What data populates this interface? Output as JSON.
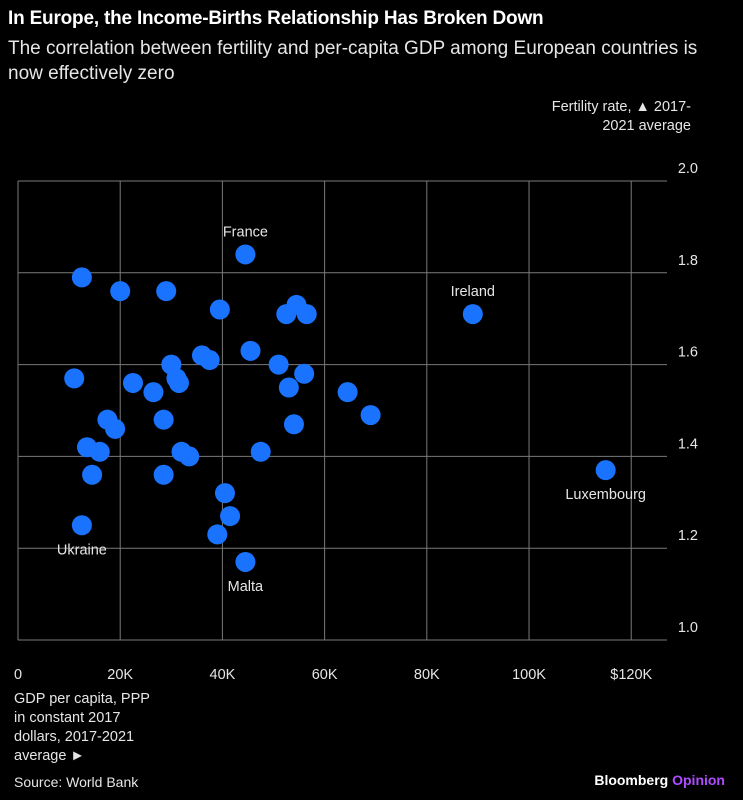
{
  "title": "In Europe, the Income-Births Relationship Has Broken Down",
  "subtitle": "The correlation between fertility and per-capita GDP among European countries is now effectively zero",
  "ylabel": "Fertility rate, ▲ 2017-2021 average",
  "xlabel": "GDP per capita, PPP in constant 2017 dollars, 2017-2021 average ►",
  "source": "Source: World Bank",
  "brand": {
    "name": "Bloomberg",
    "suffix": "Opinion"
  },
  "colors": {
    "point": "#1a73ff",
    "grid": "#7a7a7a",
    "background": "#000000"
  },
  "chart_data": {
    "type": "scatter",
    "xlim": [
      0,
      127000
    ],
    "ylim": [
      1.0,
      2.0
    ],
    "x_ticks": [
      {
        "value": 0,
        "label": "0"
      },
      {
        "value": 20000,
        "label": "20K"
      },
      {
        "value": 40000,
        "label": "40K"
      },
      {
        "value": 60000,
        "label": "60K"
      },
      {
        "value": 80000,
        "label": "80K"
      },
      {
        "value": 100000,
        "label": "100K"
      },
      {
        "value": 120000,
        "label": "$120K"
      }
    ],
    "y_ticks": [
      {
        "value": 1.0,
        "label": "1.0"
      },
      {
        "value": 1.2,
        "label": "1.2"
      },
      {
        "value": 1.4,
        "label": "1.4"
      },
      {
        "value": 1.6,
        "label": "1.6"
      },
      {
        "value": 1.8,
        "label": "1.8"
      },
      {
        "value": 2.0,
        "label": "2.0"
      }
    ],
    "grid": true,
    "annotations": [
      {
        "label": "France",
        "x": 44500,
        "y": 1.84,
        "position": "above"
      },
      {
        "label": "Ireland",
        "x": 89000,
        "y": 1.71,
        "position": "above"
      },
      {
        "label": "Luxembourg",
        "x": 115000,
        "y": 1.37,
        "position": "below"
      },
      {
        "label": "Ukraine",
        "x": 12500,
        "y": 1.25,
        "position": "below"
      },
      {
        "label": "Malta",
        "x": 44500,
        "y": 1.17,
        "position": "below"
      }
    ],
    "points": [
      {
        "x": 12500,
        "y": 1.79
      },
      {
        "x": 20000,
        "y": 1.76
      },
      {
        "x": 29000,
        "y": 1.76
      },
      {
        "x": 39500,
        "y": 1.72
      },
      {
        "x": 54500,
        "y": 1.73
      },
      {
        "x": 52500,
        "y": 1.71
      },
      {
        "x": 56500,
        "y": 1.71
      },
      {
        "x": 45500,
        "y": 1.63
      },
      {
        "x": 36000,
        "y": 1.62
      },
      {
        "x": 37500,
        "y": 1.61
      },
      {
        "x": 30000,
        "y": 1.6
      },
      {
        "x": 51000,
        "y": 1.6
      },
      {
        "x": 56000,
        "y": 1.58
      },
      {
        "x": 31500,
        "y": 1.56
      },
      {
        "x": 31000,
        "y": 1.57
      },
      {
        "x": 11000,
        "y": 1.57
      },
      {
        "x": 22500,
        "y": 1.56
      },
      {
        "x": 53000,
        "y": 1.55
      },
      {
        "x": 26500,
        "y": 1.54
      },
      {
        "x": 64500,
        "y": 1.54
      },
      {
        "x": 69000,
        "y": 1.49
      },
      {
        "x": 17500,
        "y": 1.48
      },
      {
        "x": 28500,
        "y": 1.48
      },
      {
        "x": 19000,
        "y": 1.46
      },
      {
        "x": 54000,
        "y": 1.47
      },
      {
        "x": 13500,
        "y": 1.42
      },
      {
        "x": 16000,
        "y": 1.41
      },
      {
        "x": 32000,
        "y": 1.41
      },
      {
        "x": 33500,
        "y": 1.4
      },
      {
        "x": 47500,
        "y": 1.41
      },
      {
        "x": 14500,
        "y": 1.36
      },
      {
        "x": 28500,
        "y": 1.36
      },
      {
        "x": 40500,
        "y": 1.32
      },
      {
        "x": 41500,
        "y": 1.27
      },
      {
        "x": 39000,
        "y": 1.23
      },
      {
        "x": 44500,
        "y": 1.84
      },
      {
        "x": 89000,
        "y": 1.71
      },
      {
        "x": 115000,
        "y": 1.37
      },
      {
        "x": 12500,
        "y": 1.25
      },
      {
        "x": 44500,
        "y": 1.17
      }
    ]
  }
}
